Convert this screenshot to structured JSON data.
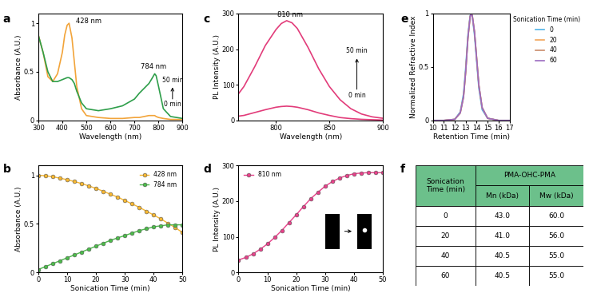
{
  "chart_data": [
    {
      "panel": "a",
      "type": "line",
      "xlabel": "Wavelength (nm)",
      "ylabel": "Absorbance (A.U.)",
      "x": [
        300,
        320,
        340,
        360,
        380,
        400,
        410,
        420,
        428,
        440,
        450,
        460,
        480,
        500,
        550,
        600,
        650,
        700,
        720,
        740,
        760,
        770,
        784,
        790,
        800,
        820,
        850,
        900
      ],
      "series": [
        {
          "color": "#f2a43a",
          "values": [
            0.88,
            0.7,
            0.45,
            0.4,
            0.48,
            0.7,
            0.88,
            0.98,
            1.0,
            0.85,
            0.6,
            0.35,
            0.12,
            0.05,
            0.03,
            0.02,
            0.02,
            0.03,
            0.03,
            0.04,
            0.05,
            0.05,
            0.05,
            0.04,
            0.03,
            0.02,
            0.01,
            0.01
          ]
        },
        {
          "color": "#2e9e4a",
          "values": [
            0.88,
            0.7,
            0.5,
            0.4,
            0.4,
            0.42,
            0.43,
            0.44,
            0.44,
            0.42,
            0.38,
            0.3,
            0.18,
            0.12,
            0.1,
            0.12,
            0.15,
            0.22,
            0.28,
            0.33,
            0.38,
            0.42,
            0.48,
            0.46,
            0.35,
            0.12,
            0.04,
            0.02
          ]
        }
      ],
      "annotations": [
        "428 nm",
        "784 nm",
        "50 min",
        "0 min"
      ],
      "xlim": [
        300,
        900
      ],
      "xticks": [
        300,
        400,
        500,
        600,
        700,
        800,
        900
      ],
      "ylim": [
        0,
        1.1
      ],
      "yticks": [
        0,
        0.5,
        1
      ]
    },
    {
      "panel": "b",
      "type": "line",
      "xlabel": "Sonication Time (min)",
      "ylabel": "Absorbance (A.U.)",
      "x": [
        0,
        2.5,
        5,
        7.5,
        10,
        12.5,
        15,
        17.5,
        20,
        22.5,
        25,
        27.5,
        30,
        32.5,
        35,
        37.5,
        40,
        42.5,
        45,
        47.5,
        50
      ],
      "series": [
        {
          "name": "428 nm",
          "color": "#f7b731",
          "marker": "o",
          "values": [
            1.0,
            0.995,
            0.985,
            0.97,
            0.955,
            0.935,
            0.915,
            0.89,
            0.865,
            0.835,
            0.805,
            0.775,
            0.74,
            0.705,
            0.67,
            0.63,
            0.59,
            0.55,
            0.505,
            0.46,
            0.41
          ]
        },
        {
          "name": "784 nm",
          "color": "#4cbb4a",
          "marker": "o",
          "values": [
            0.03,
            0.06,
            0.09,
            0.12,
            0.15,
            0.18,
            0.21,
            0.24,
            0.27,
            0.3,
            0.33,
            0.355,
            0.38,
            0.405,
            0.43,
            0.45,
            0.47,
            0.48,
            0.49,
            0.49,
            0.49
          ]
        }
      ],
      "legend": "upper right",
      "xlim": [
        0,
        50
      ],
      "xticks": [
        0,
        10,
        20,
        30,
        40,
        50
      ],
      "ylim": [
        0,
        1.1
      ],
      "yticks": [
        0,
        0.5,
        1
      ]
    },
    {
      "panel": "c",
      "type": "line",
      "xlabel": "Wavelength (nm)",
      "ylabel": "PL Intensity (A.U.)",
      "x": [
        765,
        770,
        780,
        790,
        800,
        805,
        810,
        815,
        820,
        830,
        840,
        850,
        860,
        870,
        880,
        890,
        900
      ],
      "series": [
        {
          "color": "#e23c7a",
          "values": [
            75,
            95,
            150,
            210,
            255,
            272,
            280,
            274,
            258,
            205,
            145,
            95,
            58,
            33,
            18,
            10,
            6
          ]
        },
        {
          "color": "#e23c7a",
          "values": [
            12,
            14,
            22,
            30,
            37,
            39,
            40,
            39,
            37,
            30,
            21,
            14,
            8,
            5,
            3,
            2,
            1
          ]
        }
      ],
      "annotations": [
        "810 nm",
        "50 min",
        "0 min"
      ],
      "xlim": [
        765,
        900
      ],
      "xticks": [
        800,
        850,
        900
      ],
      "ylim": [
        0,
        300
      ],
      "yticks": [
        0,
        100,
        200,
        300
      ]
    },
    {
      "panel": "d",
      "type": "line",
      "xlabel": "Sonication Time (min)",
      "ylabel": "PL Intensity (A.U.)",
      "x": [
        0,
        2.5,
        5,
        7.5,
        10,
        12.5,
        15,
        17.5,
        20,
        22.5,
        25,
        27.5,
        30,
        32.5,
        35,
        37.5,
        40,
        42.5,
        45,
        47.5,
        50
      ],
      "series": [
        {
          "name": "810 nm",
          "color": "#e8418a",
          "marker": "o",
          "values": [
            35,
            42,
            52,
            65,
            80,
            98,
            118,
            140,
            162,
            185,
            207,
            225,
            242,
            255,
            265,
            272,
            277,
            279,
            280,
            280,
            280
          ]
        }
      ],
      "legend": "upper left",
      "xlim": [
        0,
        50
      ],
      "xticks": [
        0,
        10,
        20,
        30,
        40,
        50
      ],
      "ylim": [
        0,
        300
      ],
      "yticks": [
        0,
        100,
        200,
        300
      ]
    },
    {
      "panel": "e",
      "type": "line",
      "xlabel": "Retention Time (min)",
      "ylabel": "Normalized Refractive Index",
      "x": [
        10,
        11,
        12,
        12.5,
        12.8,
        13.0,
        13.2,
        13.4,
        13.5,
        13.6,
        13.8,
        14.0,
        14.2,
        14.5,
        15,
        16,
        17
      ],
      "series": [
        {
          "name": "0",
          "color": "#4fb3e8",
          "values": [
            0,
            0,
            0.01,
            0.08,
            0.25,
            0.5,
            0.8,
            0.98,
            1.0,
            0.97,
            0.8,
            0.55,
            0.3,
            0.1,
            0.02,
            0,
            0
          ]
        },
        {
          "name": "20",
          "color": "#f2a65a",
          "values": [
            0,
            0,
            0.01,
            0.07,
            0.22,
            0.46,
            0.77,
            0.97,
            1.0,
            0.98,
            0.83,
            0.58,
            0.33,
            0.12,
            0.02,
            0,
            0
          ]
        },
        {
          "name": "40",
          "color": "#c98b6b",
          "values": [
            0,
            0,
            0.01,
            0.07,
            0.22,
            0.46,
            0.77,
            0.97,
            1.0,
            0.98,
            0.83,
            0.58,
            0.33,
            0.12,
            0.02,
            0,
            0
          ]
        },
        {
          "name": "60",
          "color": "#9b6bc0",
          "values": [
            0,
            0,
            0.01,
            0.07,
            0.22,
            0.46,
            0.77,
            0.97,
            1.0,
            0.98,
            0.83,
            0.58,
            0.33,
            0.12,
            0.02,
            0,
            0
          ]
        }
      ],
      "legend": "right",
      "legend_title": "Sonication Time (min)",
      "xlim": [
        10,
        17
      ],
      "xticks": [
        10,
        11,
        12,
        13,
        14,
        15,
        16,
        17
      ],
      "ylim": [
        0,
        1
      ],
      "yticks": [
        0,
        0.5,
        1
      ]
    }
  ],
  "table": {
    "panel": "f",
    "header": {
      "row_label": "Sonication Time (min)",
      "group": "PMA-OHC-PMA",
      "columns": [
        "Mn (kDa)",
        "Mw (kDa)"
      ]
    },
    "rows": [
      [
        "0",
        "43.0",
        "60.0"
      ],
      [
        "20",
        "41.0",
        "56.0"
      ],
      [
        "40",
        "40.5",
        "55.0"
      ],
      [
        "60",
        "40.5",
        "55.0"
      ]
    ]
  }
}
